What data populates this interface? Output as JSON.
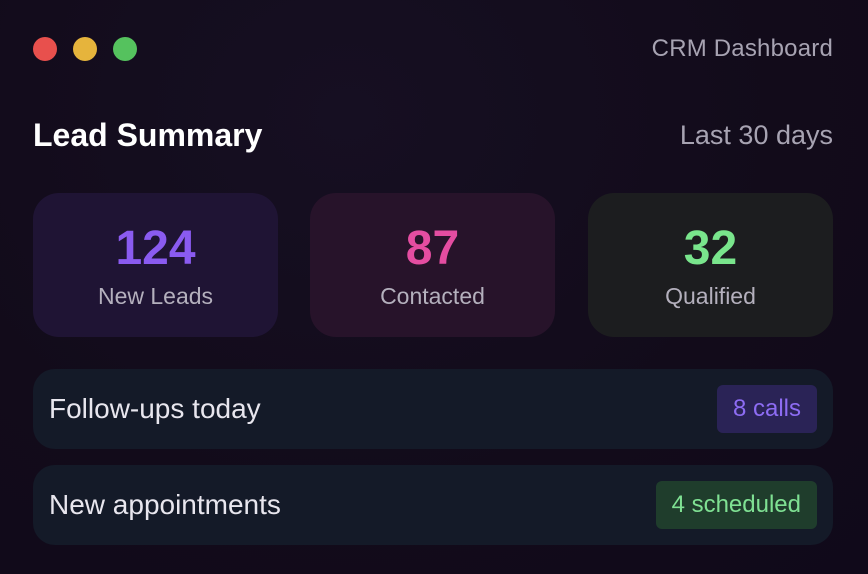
{
  "window": {
    "title": "CRM Dashboard",
    "controls": [
      "close",
      "minimize",
      "maximize"
    ]
  },
  "summary": {
    "title": "Lead Summary",
    "range": "Last 30 days"
  },
  "stats": [
    {
      "value": "124",
      "label": "New Leads",
      "color": "#8a5bf0"
    },
    {
      "value": "87",
      "label": "Contacted",
      "color": "#e44da1"
    },
    {
      "value": "32",
      "label": "Qualified",
      "color": "#79e58c"
    }
  ],
  "rows": [
    {
      "label": "Follow-ups today",
      "badge": "8 calls"
    },
    {
      "label": "New appointments",
      "badge": "4 scheduled"
    }
  ]
}
